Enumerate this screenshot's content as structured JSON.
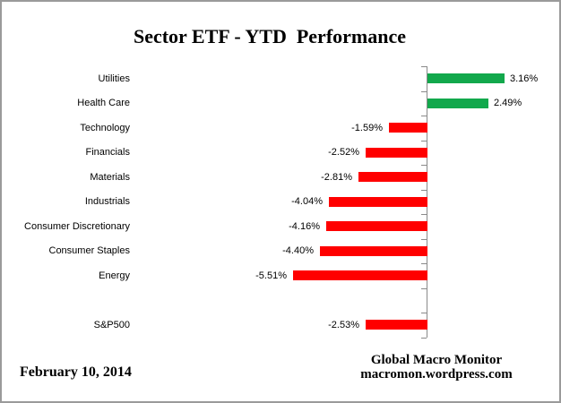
{
  "title": "Sector ETF - YTD  Performance",
  "footer": {
    "date": "February 10, 2014",
    "credit_line1": "Global Macro Monitor",
    "credit_line2": "macromon.wordpress.com"
  },
  "colors": {
    "positive": "#12A84C",
    "negative": "#FF0000",
    "axis": "#8A8A8A",
    "frame_border": "#9A9A9A",
    "text": "#000000"
  },
  "chart_data": {
    "type": "bar",
    "orientation": "horizontal",
    "title": "Sector ETF - YTD  Performance",
    "categories": [
      "Utilities",
      "Health Care",
      "Technology",
      "Financials",
      "Materials",
      "Industrials",
      "Consumer Discretionary",
      "Consumer Staples",
      "Energy",
      "",
      "S&P500"
    ],
    "values": [
      3.16,
      2.49,
      -1.59,
      -2.52,
      -2.81,
      -4.04,
      -4.16,
      -4.4,
      -5.51,
      null,
      -2.53
    ],
    "value_labels": [
      "3.16%",
      "2.49%",
      "-1.59%",
      "-2.52%",
      "-2.81%",
      "-4.04%",
      "-4.16%",
      "-4.40%",
      "-5.51%",
      "",
      "-2.53%"
    ],
    "unit": "%",
    "grid": false,
    "legend": false,
    "value_axis_tick_labels_visible": false,
    "category_ticks": "boundaries"
  }
}
